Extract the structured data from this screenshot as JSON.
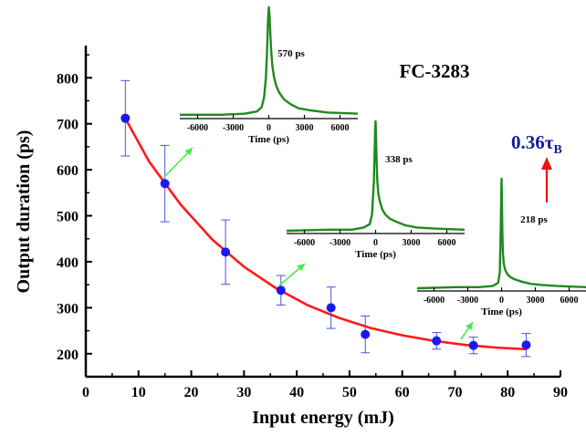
{
  "chart_data": {
    "type": "scatter",
    "title": "FC-3283",
    "xlabel": "Input energy (mJ)",
    "ylabel": "Output duration (ps)",
    "xlim": [
      0,
      90
    ],
    "ylim": [
      150,
      870
    ],
    "x_ticks": [
      "0",
      "10",
      "20",
      "30",
      "40",
      "50",
      "60",
      "70",
      "80",
      "90"
    ],
    "y_ticks": [
      "200",
      "300",
      "400",
      "500",
      "600",
      "700",
      "800"
    ],
    "series": [
      {
        "points": [
          {
            "x": 7.5,
            "y": 712,
            "err": 82
          },
          {
            "x": 15,
            "y": 570,
            "err": 83
          },
          {
            "x": 26.5,
            "y": 421,
            "err": 70
          },
          {
            "x": 37,
            "y": 338,
            "err": 32
          },
          {
            "x": 46.5,
            "y": 300,
            "err": 45
          },
          {
            "x": 53,
            "y": 242,
            "err": 40
          },
          {
            "x": 66.5,
            "y": 228,
            "err": 18
          },
          {
            "x": 73.5,
            "y": 218,
            "err": 18
          },
          {
            "x": 83.5,
            "y": 219,
            "err": 25
          }
        ],
        "color": "#1a1aee"
      }
    ],
    "fit": {
      "color": "#ff1a1a",
      "x": [
        7.5,
        12,
        18,
        24,
        30,
        36,
        42,
        48,
        54,
        60,
        66,
        72,
        78,
        83.5
      ],
      "y": [
        712,
        618,
        524,
        448,
        389,
        343,
        306,
        278,
        256,
        240,
        228,
        219,
        213,
        210
      ]
    },
    "annotation": {
      "text": "0.36",
      "subscript_text": "τ",
      "subscript": "B",
      "color": "#1a1a99",
      "arrow_color": "#ee1111"
    },
    "insets": [
      {
        "label": "570 ps",
        "x_ticks": [
          "-6000",
          "-3000",
          "0",
          "3000",
          "6000"
        ],
        "xlabel": "Time (ps)",
        "xlim": [
          -7500,
          7500
        ],
        "x": [
          -7500,
          -4000,
          -2000,
          -1000,
          -600,
          -400,
          -250,
          -150,
          -80,
          0,
          60,
          130,
          200,
          300,
          450,
          650,
          900,
          1300,
          1800,
          2500,
          3500,
          5000,
          7500
        ],
        "y": [
          0.01,
          0.01,
          0.02,
          0.04,
          0.08,
          0.17,
          0.35,
          0.6,
          0.85,
          1.0,
          0.92,
          0.75,
          0.6,
          0.46,
          0.35,
          0.27,
          0.21,
          0.15,
          0.11,
          0.07,
          0.05,
          0.03,
          0.02
        ],
        "color": "#1f8a1f"
      },
      {
        "label": "338 ps",
        "x_ticks": [
          "-6000",
          "-3000",
          "0",
          "3000",
          "6000"
        ],
        "xlabel": "Time (ps)",
        "xlim": [
          -7500,
          7500
        ],
        "x": [
          -7500,
          -4000,
          -2000,
          -1000,
          -500,
          -300,
          -150,
          -80,
          -30,
          0,
          40,
          90,
          150,
          230,
          350,
          550,
          800,
          1200,
          1800,
          2500,
          3500,
          5000,
          7500
        ],
        "y": [
          0.0,
          0.01,
          0.01,
          0.03,
          0.06,
          0.15,
          0.45,
          0.75,
          0.95,
          1.0,
          0.85,
          0.62,
          0.45,
          0.34,
          0.27,
          0.2,
          0.15,
          0.11,
          0.08,
          0.05,
          0.03,
          0.02,
          0.01
        ],
        "color": "#1f8a1f"
      },
      {
        "label": "218 ps",
        "x_ticks": [
          "-6000",
          "-3000",
          "0",
          "3000",
          "6000"
        ],
        "xlabel": "Time (ps)",
        "xlim": [
          -7500,
          7500
        ],
        "x": [
          -7500,
          -4000,
          -2000,
          -800,
          -300,
          -150,
          -70,
          -20,
          0,
          30,
          70,
          120,
          200,
          320,
          500,
          800,
          1200,
          1800,
          2600,
          3600,
          5000,
          7500
        ],
        "y": [
          0.0,
          0.01,
          0.01,
          0.02,
          0.05,
          0.15,
          0.55,
          0.92,
          1.0,
          0.8,
          0.5,
          0.32,
          0.22,
          0.17,
          0.13,
          0.1,
          0.08,
          0.06,
          0.04,
          0.03,
          0.02,
          0.01
        ],
        "color": "#1f8a1f"
      }
    ]
  }
}
